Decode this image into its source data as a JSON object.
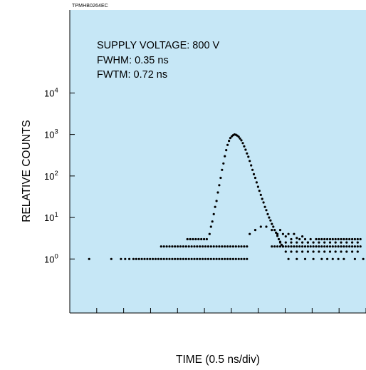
{
  "figure_code": "TPMHB0264EC",
  "annotations": {
    "supply_voltage": "SUPPLY VOLTAGE: 800 V",
    "fwhm": "FWHM: 0.35 ns",
    "fwtm": "FWTM: 0.72 ns"
  },
  "colors": {
    "plot_background": "#c6e7f6",
    "points": "#000000"
  },
  "chart_data": {
    "type": "scatter",
    "title": "",
    "xlabel": "TIME (0.5 ns/div)",
    "ylabel": "RELATIVE COUNTS",
    "xscale": "linear",
    "yscale": "log",
    "xlim": [
      0,
      10.7
    ],
    "ylim": [
      0.05,
      1000000
    ],
    "y_ticks": [
      {
        "value": 1,
        "base": "10",
        "exp": "0"
      },
      {
        "value": 10,
        "base": "10",
        "exp": "1"
      },
      {
        "value": 100,
        "base": "10",
        "exp": "2"
      },
      {
        "value": 1000,
        "base": "10",
        "exp": "3"
      },
      {
        "value": 10000,
        "base": "10",
        "exp": "4"
      }
    ],
    "x_minor_divisions": 11,
    "grid": false,
    "legend": "none",
    "series": [
      {
        "points": [
          [
            0.7,
            1
          ],
          [
            1.5,
            1
          ],
          [
            1.85,
            1
          ],
          [
            2.0,
            1
          ],
          [
            2.15,
            1
          ],
          [
            2.3,
            1
          ],
          [
            2.4,
            1
          ],
          [
            2.5,
            1
          ],
          [
            2.6,
            1
          ],
          [
            2.7,
            1
          ],
          [
            2.8,
            1
          ],
          [
            2.9,
            1
          ],
          [
            3.0,
            1
          ],
          [
            3.1,
            1
          ],
          [
            3.2,
            1
          ],
          [
            3.3,
            1
          ],
          [
            3.4,
            1
          ],
          [
            3.5,
            1
          ],
          [
            3.6,
            1
          ],
          [
            3.7,
            1
          ],
          [
            3.8,
            1
          ],
          [
            3.9,
            1
          ],
          [
            4.0,
            1
          ],
          [
            4.1,
            1
          ],
          [
            4.2,
            1
          ],
          [
            4.3,
            1
          ],
          [
            4.4,
            1
          ],
          [
            4.5,
            1
          ],
          [
            4.6,
            1
          ],
          [
            4.7,
            1
          ],
          [
            4.8,
            1
          ],
          [
            4.9,
            1
          ],
          [
            5.0,
            1
          ],
          [
            5.1,
            1
          ],
          [
            5.2,
            1
          ],
          [
            5.3,
            1
          ],
          [
            5.4,
            1
          ],
          [
            5.5,
            1
          ],
          [
            5.6,
            1
          ],
          [
            5.7,
            1
          ],
          [
            5.8,
            1
          ],
          [
            5.9,
            1
          ],
          [
            6.0,
            1
          ],
          [
            6.1,
            1
          ],
          [
            6.2,
            1
          ],
          [
            6.3,
            1
          ],
          [
            6.4,
            1
          ],
          [
            3.3,
            2
          ],
          [
            3.4,
            2
          ],
          [
            3.5,
            2
          ],
          [
            3.6,
            2
          ],
          [
            3.7,
            2
          ],
          [
            3.8,
            2
          ],
          [
            3.9,
            2
          ],
          [
            4.0,
            2
          ],
          [
            4.1,
            2
          ],
          [
            4.2,
            2
          ],
          [
            4.3,
            2
          ],
          [
            4.4,
            2
          ],
          [
            4.5,
            2
          ],
          [
            4.6,
            2
          ],
          [
            4.7,
            2
          ],
          [
            4.8,
            2
          ],
          [
            4.9,
            2
          ],
          [
            5.0,
            2
          ],
          [
            5.1,
            2
          ],
          [
            5.2,
            2
          ],
          [
            5.3,
            2
          ],
          [
            5.4,
            2
          ],
          [
            5.5,
            2
          ],
          [
            5.6,
            2
          ],
          [
            5.7,
            2
          ],
          [
            5.8,
            2
          ],
          [
            5.9,
            2
          ],
          [
            6.0,
            2
          ],
          [
            6.1,
            2
          ],
          [
            6.2,
            2
          ],
          [
            6.3,
            2
          ],
          [
            6.4,
            2
          ],
          [
            4.25,
            3
          ],
          [
            4.35,
            3
          ],
          [
            4.45,
            3
          ],
          [
            4.55,
            3
          ],
          [
            4.65,
            3
          ],
          [
            4.75,
            3
          ],
          [
            4.85,
            3
          ],
          [
            4.95,
            3
          ],
          [
            5.05,
            4
          ],
          [
            5.1,
            6
          ],
          [
            5.15,
            8
          ],
          [
            5.2,
            12
          ],
          [
            5.25,
            18
          ],
          [
            5.3,
            25
          ],
          [
            5.35,
            40
          ],
          [
            5.4,
            60
          ],
          [
            5.45,
            90
          ],
          [
            5.5,
            140
          ],
          [
            5.55,
            200
          ],
          [
            5.6,
            300
          ],
          [
            5.65,
            420
          ],
          [
            5.7,
            560
          ],
          [
            5.75,
            700
          ],
          [
            5.8,
            820
          ],
          [
            5.85,
            900
          ],
          [
            5.9,
            960
          ],
          [
            5.95,
            1000
          ],
          [
            6.0,
            980
          ],
          [
            6.05,
            940
          ],
          [
            6.1,
            880
          ],
          [
            6.15,
            800
          ],
          [
            6.2,
            720
          ],
          [
            6.25,
            620
          ],
          [
            6.3,
            520
          ],
          [
            6.35,
            430
          ],
          [
            6.4,
            350
          ],
          [
            6.45,
            290
          ],
          [
            6.5,
            230
          ],
          [
            6.55,
            180
          ],
          [
            6.6,
            140
          ],
          [
            6.65,
            110
          ],
          [
            6.7,
            90
          ],
          [
            6.75,
            70
          ],
          [
            6.8,
            55
          ],
          [
            6.85,
            44
          ],
          [
            6.9,
            35
          ],
          [
            6.95,
            28
          ],
          [
            7.0,
            23
          ],
          [
            7.05,
            18
          ],
          [
            7.1,
            15
          ],
          [
            7.15,
            12
          ],
          [
            7.2,
            10
          ],
          [
            7.25,
            8.5
          ],
          [
            7.3,
            7
          ],
          [
            7.35,
            6
          ],
          [
            7.4,
            5
          ],
          [
            7.45,
            4.3
          ],
          [
            7.5,
            3.6
          ],
          [
            7.55,
            3
          ],
          [
            7.6,
            2.6
          ],
          [
            7.65,
            2.2
          ],
          [
            7.7,
            2
          ],
          [
            6.5,
            4
          ],
          [
            6.7,
            5
          ],
          [
            6.9,
            6
          ],
          [
            7.1,
            6
          ],
          [
            7.3,
            5
          ],
          [
            7.5,
            4
          ],
          [
            7.6,
            5
          ],
          [
            7.7,
            4
          ],
          [
            7.8,
            3.5
          ],
          [
            7.9,
            4
          ],
          [
            8.0,
            3
          ],
          [
            8.1,
            4
          ],
          [
            8.2,
            3.2
          ],
          [
            8.3,
            3
          ],
          [
            8.4,
            3.5
          ],
          [
            8.5,
            3
          ],
          [
            8.6,
            2.5
          ],
          [
            8.7,
            3
          ],
          [
            7.3,
            2
          ],
          [
            7.4,
            2
          ],
          [
            7.5,
            2
          ],
          [
            7.6,
            2
          ],
          [
            7.7,
            2
          ],
          [
            7.8,
            2
          ],
          [
            7.9,
            2
          ],
          [
            8.0,
            2
          ],
          [
            8.1,
            2
          ],
          [
            8.2,
            2
          ],
          [
            8.3,
            2
          ],
          [
            8.4,
            2
          ],
          [
            8.5,
            2
          ],
          [
            8.6,
            2
          ],
          [
            8.7,
            2
          ],
          [
            8.8,
            2
          ],
          [
            8.9,
            2
          ],
          [
            9.0,
            2
          ],
          [
            9.1,
            2
          ],
          [
            9.2,
            2
          ],
          [
            9.3,
            2
          ],
          [
            9.4,
            2
          ],
          [
            9.5,
            2
          ],
          [
            9.6,
            2
          ],
          [
            9.7,
            2
          ],
          [
            9.8,
            2
          ],
          [
            9.9,
            2
          ],
          [
            10.0,
            2
          ],
          [
            10.1,
            2
          ],
          [
            10.2,
            2
          ],
          [
            10.3,
            2
          ],
          [
            10.4,
            2
          ],
          [
            10.5,
            2
          ],
          [
            7.6,
            2.5
          ],
          [
            7.8,
            2.5
          ],
          [
            8.0,
            2.5
          ],
          [
            8.2,
            2.5
          ],
          [
            8.4,
            2.5
          ],
          [
            8.6,
            2.5
          ],
          [
            8.8,
            2.5
          ],
          [
            9.0,
            2.5
          ],
          [
            9.2,
            2.5
          ],
          [
            9.4,
            2.5
          ],
          [
            9.6,
            2.5
          ],
          [
            9.8,
            2.5
          ],
          [
            10.0,
            2.5
          ],
          [
            10.2,
            2.5
          ],
          [
            10.4,
            2.5
          ],
          [
            8.9,
            3
          ],
          [
            9.0,
            3
          ],
          [
            9.1,
            3
          ],
          [
            9.2,
            3
          ],
          [
            9.3,
            3
          ],
          [
            9.4,
            3
          ],
          [
            9.5,
            3
          ],
          [
            9.6,
            3
          ],
          [
            9.7,
            3
          ],
          [
            9.8,
            3
          ],
          [
            9.9,
            3
          ],
          [
            10.0,
            3
          ],
          [
            10.1,
            3
          ],
          [
            10.2,
            3
          ],
          [
            10.3,
            3
          ],
          [
            10.4,
            3
          ],
          [
            10.5,
            3
          ],
          [
            7.8,
            1.5
          ],
          [
            8.0,
            1.5
          ],
          [
            8.2,
            1.5
          ],
          [
            8.4,
            1.5
          ],
          [
            8.6,
            1.5
          ],
          [
            8.8,
            1.5
          ],
          [
            9.0,
            1.5
          ],
          [
            9.2,
            1.5
          ],
          [
            9.4,
            1.5
          ],
          [
            9.6,
            1.5
          ],
          [
            9.8,
            1.5
          ],
          [
            10.0,
            1.5
          ],
          [
            10.2,
            1.5
          ],
          [
            10.4,
            1.5
          ],
          [
            7.9,
            1
          ],
          [
            8.2,
            1
          ],
          [
            8.5,
            1
          ],
          [
            8.8,
            1
          ],
          [
            9.1,
            1
          ],
          [
            9.3,
            1
          ],
          [
            9.5,
            1
          ],
          [
            9.7,
            1
          ],
          [
            9.9,
            1
          ],
          [
            10.3,
            1
          ],
          [
            10.6,
            1
          ]
        ]
      }
    ]
  }
}
